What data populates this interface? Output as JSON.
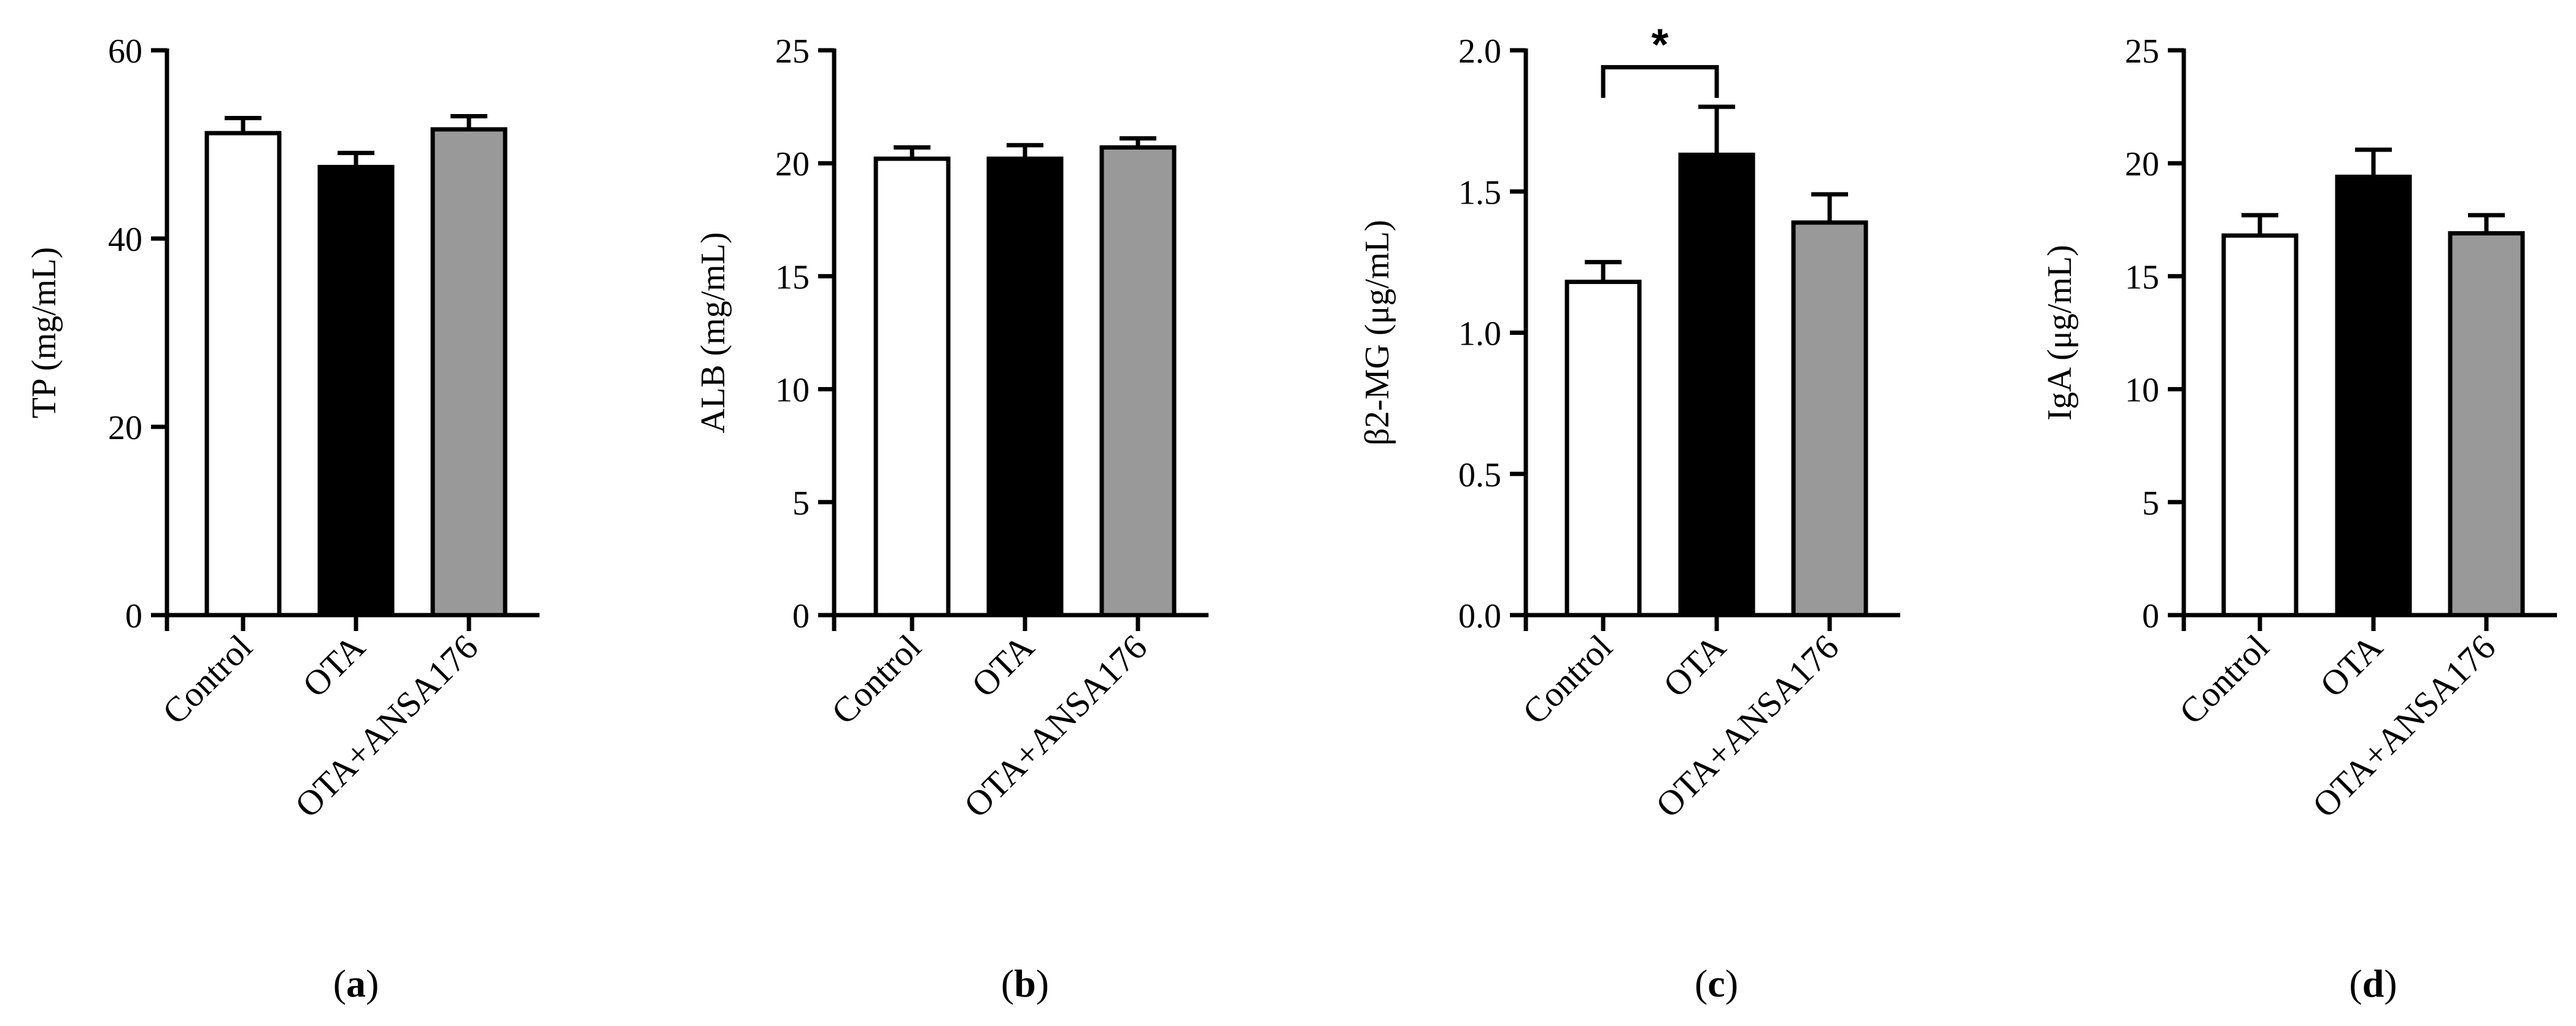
{
  "figure": {
    "panel_labels": [
      {
        "open": "(",
        "letter": "a",
        "close": ")"
      },
      {
        "open": "(",
        "letter": "b",
        "close": ")"
      },
      {
        "open": "(",
        "letter": "c",
        "close": ")"
      },
      {
        "open": "(",
        "letter": "d",
        "close": ")"
      }
    ]
  },
  "chart_data": [
    {
      "type": "bar",
      "panel": "a",
      "title": "",
      "xlabel": "",
      "ylabel": "TP (mg/mL)",
      "categories": [
        "Control",
        "OTA",
        "OTA+ANSA176"
      ],
      "values": [
        51.2,
        47.6,
        51.6
      ],
      "errors": [
        1.6,
        1.5,
        1.4
      ],
      "bar_colors": [
        "#ffffff",
        "#000000",
        "#999999"
      ],
      "ylim": [
        0,
        60
      ],
      "yticks": [
        0,
        20,
        40,
        60
      ],
      "ytick_labels": [
        "0",
        "20",
        "40",
        "60"
      ],
      "grid": false
    },
    {
      "type": "bar",
      "panel": "b",
      "title": "",
      "xlabel": "",
      "ylabel": "ALB (mg/mL)",
      "categories": [
        "Control",
        "OTA",
        "OTA+ANSA176"
      ],
      "values": [
        20.2,
        20.2,
        20.7
      ],
      "errors": [
        0.5,
        0.6,
        0.4
      ],
      "bar_colors": [
        "#ffffff",
        "#000000",
        "#999999"
      ],
      "ylim": [
        0,
        25
      ],
      "yticks": [
        0,
        5,
        10,
        15,
        20,
        25
      ],
      "ytick_labels": [
        "0",
        "5",
        "10",
        "15",
        "20",
        "25"
      ],
      "grid": false
    },
    {
      "type": "bar",
      "panel": "c",
      "title": "",
      "xlabel": "",
      "ylabel": "β2-MG (μg/mL)",
      "categories": [
        "Control",
        "OTA",
        "OTA+ANSA176"
      ],
      "values": [
        1.18,
        1.63,
        1.39
      ],
      "errors": [
        0.07,
        0.17,
        0.1
      ],
      "bar_colors": [
        "#ffffff",
        "#000000",
        "#999999"
      ],
      "ylim": [
        0,
        2.0
      ],
      "yticks": [
        0,
        0.5,
        1.0,
        1.5,
        2.0
      ],
      "ytick_labels": [
        "0.0",
        "0.5",
        "1.0",
        "1.5",
        "2.0"
      ],
      "grid": false,
      "annotations": [
        {
          "type": "significance",
          "from": "Control",
          "to": "OTA",
          "text": "*",
          "y": 1.94
        }
      ]
    },
    {
      "type": "bar",
      "panel": "d",
      "title": "",
      "xlabel": "",
      "ylabel": "IgA (μg/mL)",
      "categories": [
        "Control",
        "OTA",
        "OTA+ANSA176"
      ],
      "values": [
        16.8,
        19.4,
        16.9
      ],
      "errors": [
        0.9,
        1.2,
        0.8
      ],
      "bar_colors": [
        "#ffffff",
        "#000000",
        "#999999"
      ],
      "ylim": [
        0,
        25
      ],
      "yticks": [
        0,
        5,
        10,
        15,
        20,
        25
      ],
      "ytick_labels": [
        "0",
        "5",
        "10",
        "15",
        "20",
        "25"
      ],
      "grid": false
    }
  ]
}
